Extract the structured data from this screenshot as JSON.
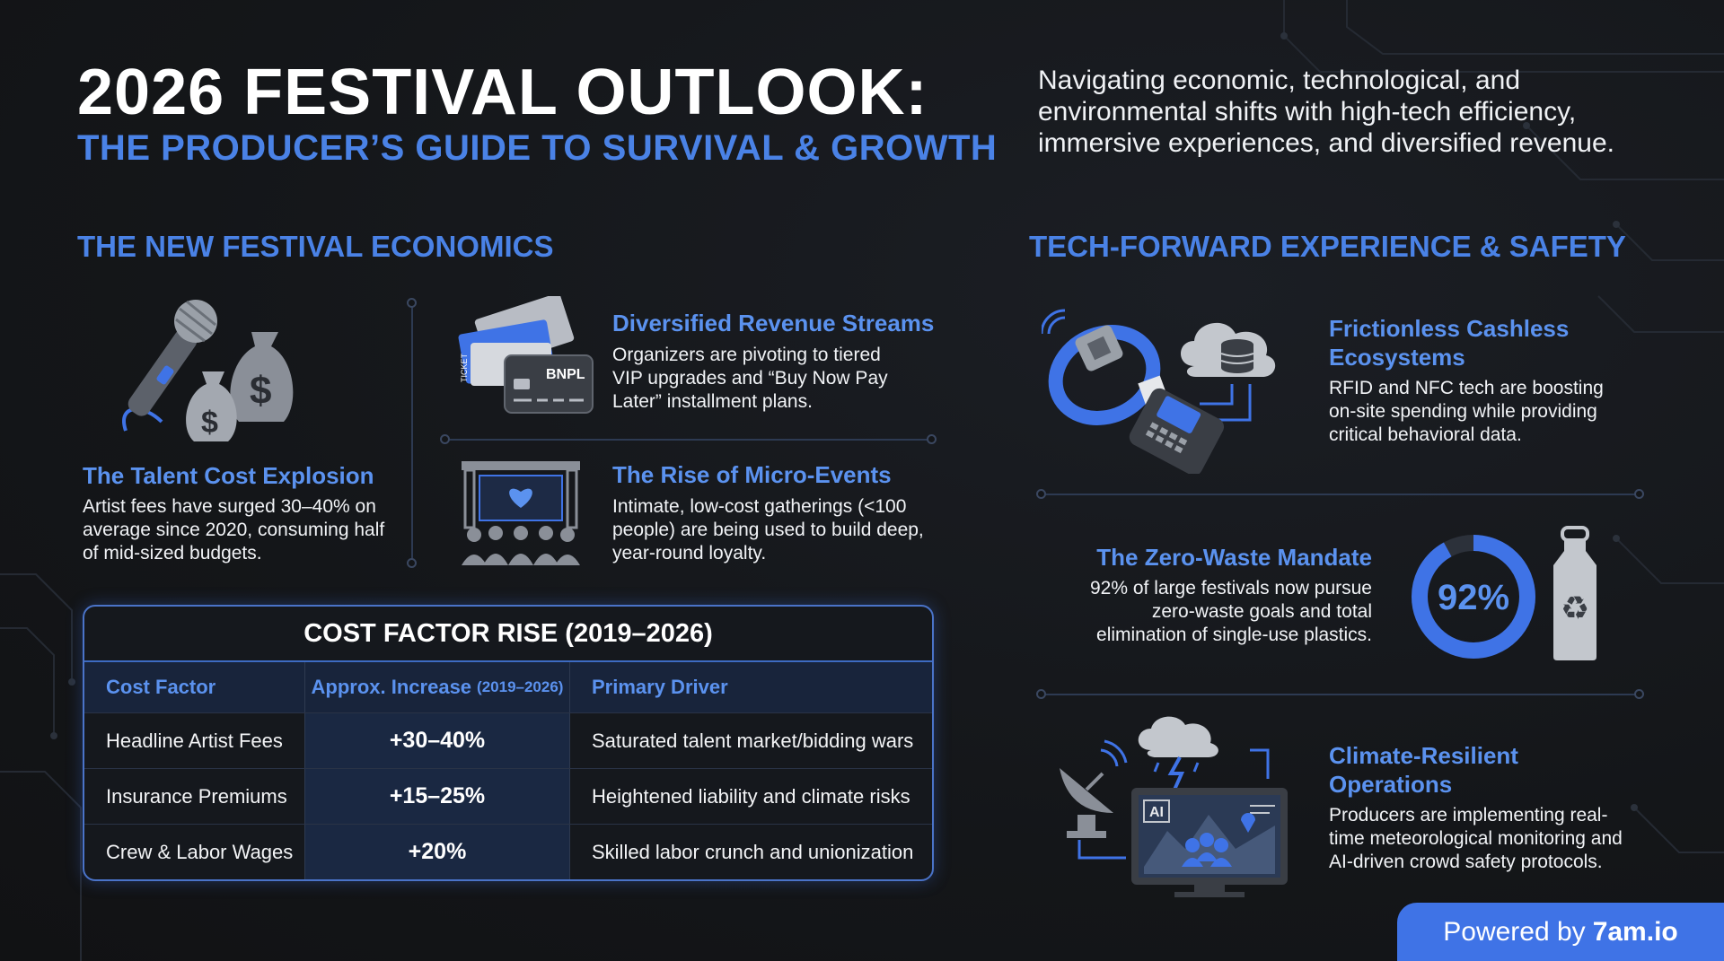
{
  "header": {
    "title": "2026 FESTIVAL OUTLOOK:",
    "subtitle": "THE PRODUCER’S GUIDE TO SURVIVAL & GROWTH",
    "intro": "Navigating economic, technological, and environmental shifts with high-tech efficiency, immersive experiences, and diversified revenue."
  },
  "economics": {
    "heading": "THE NEW FESTIVAL ECONOMICS",
    "talent": {
      "title": "The Talent Cost Explosion",
      "body": "Artist fees have surged 30–40% on average since 2020, consuming half of mid-sized budgets."
    },
    "revenue": {
      "title": "Diversified Revenue Streams",
      "body": "Organizers are pivoting to tiered VIP upgrades and “Buy Now Pay Later” installment plans.",
      "card_label": "BNPL",
      "ticket_label": "TICKET"
    },
    "micro": {
      "title": "The Rise of Micro-Events",
      "body": "Intimate, low-cost gatherings (<100 people) are being used to build deep, year-round loyalty."
    }
  },
  "table": {
    "title": "COST FACTOR RISE (2019–2026)",
    "headers": {
      "factor": "Cost Factor",
      "increase": "Approx. Increase",
      "increase_note": "(2019–2026)",
      "driver": "Primary Driver"
    },
    "rows": [
      {
        "factor": "Headline Artist Fees",
        "increase": "+30–40%",
        "driver": "Saturated talent market/bidding wars"
      },
      {
        "factor": "Insurance Premiums",
        "increase": "+15–25%",
        "driver": "Heightened liability and climate risks"
      },
      {
        "factor": "Crew & Labor Wages",
        "increase": "+20%",
        "driver": "Skilled labor crunch and unionization"
      }
    ]
  },
  "tech": {
    "heading": "TECH-FORWARD EXPERIENCE & SAFETY",
    "cashless": {
      "title_line1": "Frictionless Cashless",
      "title_line2": "Ecosystems",
      "body": "RFID and NFC tech are boosting on-site spending while providing critical behavioral data."
    },
    "zerowaste": {
      "title": "The Zero-Waste Mandate",
      "body_line1": "92% of large festivals now pursue",
      "body_line2": "zero-waste goals and total",
      "body_line3": "elimination of single-use plastics.",
      "percent_label": "92%",
      "percent_value": 0.92
    },
    "climate": {
      "title_line1": "Climate-Resilient",
      "title_line2": "Operations",
      "body": "Producers are implementing real-time meteorological monitoring and AI-driven crowd safety protocols.",
      "screen_label": "AI"
    }
  },
  "footer": {
    "powered_prefix": "Powered by",
    "powered_brand": "7am.io"
  },
  "colors": {
    "accent": "#4a82e6",
    "background": "#141619",
    "icon_gray": "#8a8f98",
    "badge": "#3f73e6"
  },
  "icons": [
    "microphone-icon",
    "money-bag-icon",
    "ticket-icon",
    "credit-card-icon",
    "stage-icon",
    "audience-icon",
    "wristband-icon",
    "cloud-database-icon",
    "payment-terminal-icon",
    "water-bottle-icon",
    "recycle-icon",
    "satellite-dish-icon",
    "storm-cloud-icon",
    "monitor-icon"
  ]
}
